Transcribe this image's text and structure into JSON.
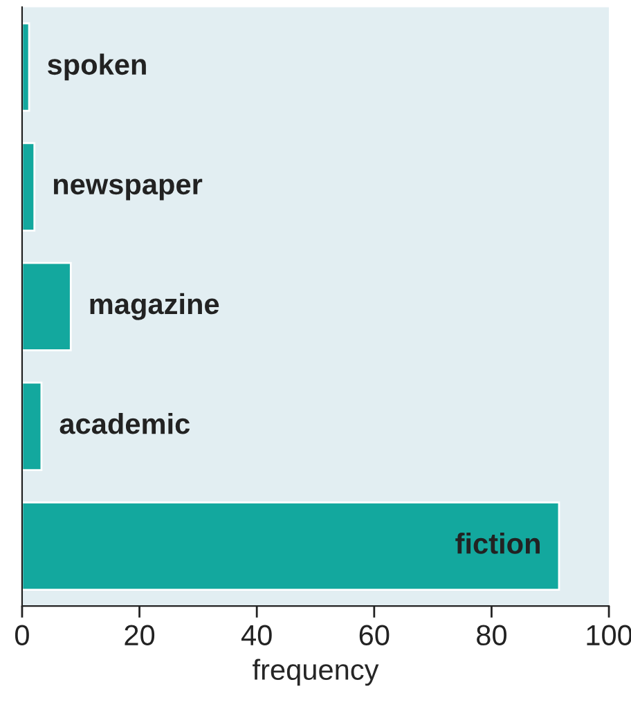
{
  "chart_data": {
    "type": "bar",
    "orientation": "horizontal",
    "xlabel": "frequency",
    "categories": [
      "spoken",
      "newspaper",
      "magazine",
      "academic",
      "fiction"
    ],
    "values": [
      1.2,
      2.1,
      8.3,
      3.3,
      91.5
    ],
    "color": "#13a89e",
    "xlim": [
      0,
      100
    ],
    "xticks": [
      0,
      20,
      40,
      60,
      80,
      100
    ],
    "grid": false
  }
}
